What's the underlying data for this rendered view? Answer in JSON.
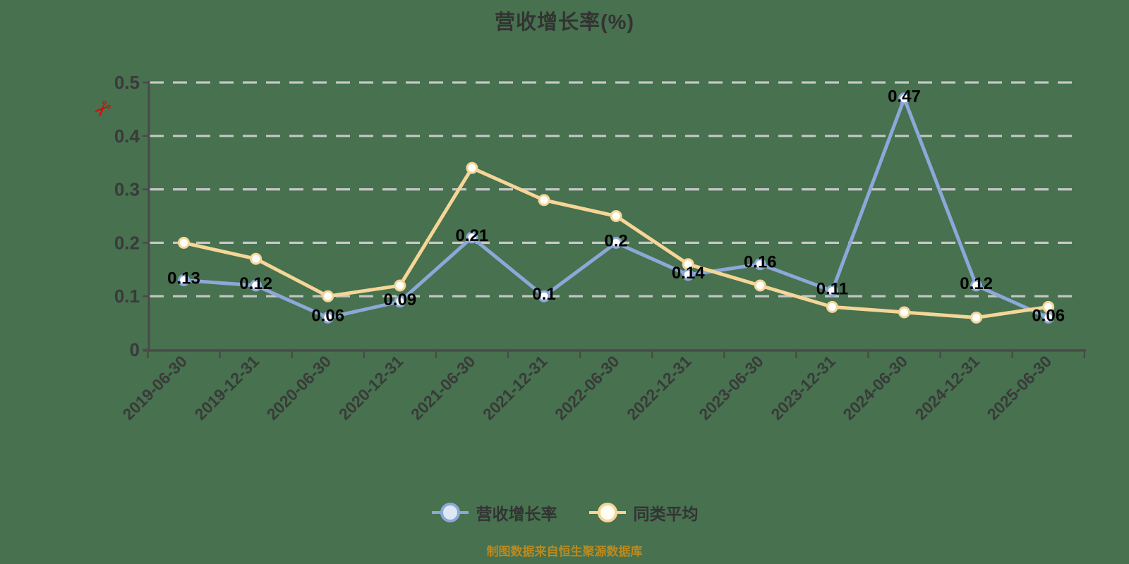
{
  "title": "营收增长率(%)",
  "icons": {
    "scissors": "✂"
  },
  "colors": {
    "background": "#47714F",
    "axis": "#4A4A4A",
    "gridline": "#CCCCCC",
    "tick_text": "#3A3A3A",
    "value_label": "#000000",
    "title_text": "#333333",
    "scissors_red": "#E10600"
  },
  "legend": {
    "items": [
      {
        "label": "营收增长率",
        "color": "#8CA8D8",
        "marker_fill": "#DDE7F6"
      },
      {
        "label": "同类平均",
        "color": "#F5D697",
        "marker_fill": "#FFFDF4"
      }
    ]
  },
  "footer": {
    "source_note": "制图数据来自恒生聚源数据库"
  },
  "chart_data": {
    "type": "line",
    "title": "营收增长率(%)",
    "categories": [
      "2019-06-30",
      "2019-12-31",
      "2020-06-30",
      "2020-12-31",
      "2021-06-30",
      "2021-12-31",
      "2022-06-30",
      "2022-12-31",
      "2023-06-30",
      "2023-12-31",
      "2024-06-30",
      "2024-12-31",
      "2025-06-30"
    ],
    "series": [
      {
        "name": "营收增长率",
        "color": "#8CA8D8",
        "marker_fill": "#FFFFFF",
        "show_value_labels": true,
        "values": [
          0.13,
          0.12,
          0.06,
          0.09,
          0.21,
          0.1,
          0.2,
          0.14,
          0.16,
          0.11,
          0.47,
          0.12,
          0.06
        ]
      },
      {
        "name": "同类平均",
        "color": "#F5D697",
        "marker_fill": "#FFFFFF",
        "show_value_labels": false,
        "values": [
          0.2,
          0.17,
          0.1,
          0.12,
          0.34,
          0.28,
          0.25,
          0.16,
          0.12,
          0.08,
          0.07,
          0.06,
          0.08
        ]
      }
    ],
    "ylim": [
      0,
      0.5
    ],
    "yticks": [
      0,
      0.1,
      0.2,
      0.3,
      0.4,
      0.5
    ],
    "ytick_labels": [
      "0",
      "0.1",
      "0.2",
      "0.3",
      "0.4",
      "0.5"
    ],
    "grid": "horizontal-dashed",
    "legend_position": "bottom",
    "xlabel": "",
    "ylabel": ""
  }
}
